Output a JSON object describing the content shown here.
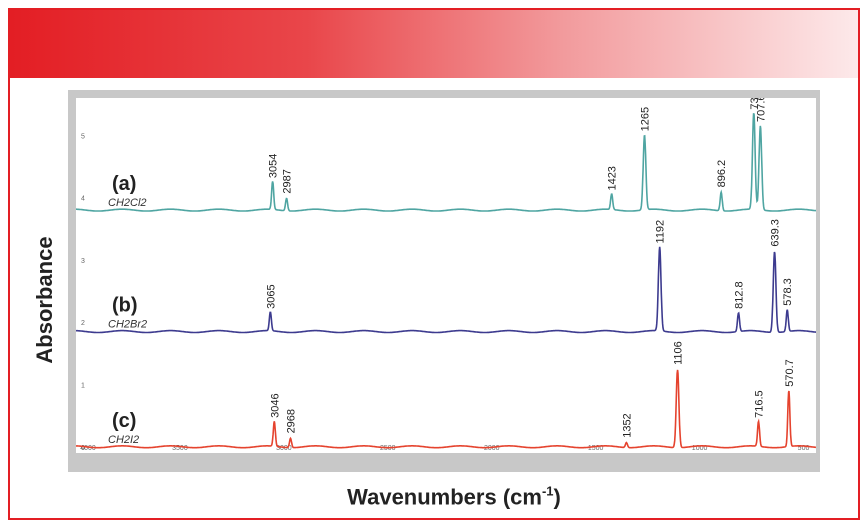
{
  "chart_data": {
    "type": "line",
    "xlabel_text": "Wavenumbers (cm",
    "xlabel_sup": "-1",
    "xlabel_close": ")",
    "ylabel": "Absorbance",
    "xlim": [
      4000,
      440
    ],
    "ylim": [
      -0.1,
      5.6
    ],
    "x_ticks": [
      "4000",
      "3500",
      "3000",
      "2500",
      "2000",
      "1500",
      "1000",
      "500"
    ],
    "y_ticks": [
      "0",
      "1",
      "2",
      "3",
      "4",
      "5"
    ],
    "colors": {
      "a": "#4fa5a2",
      "b": "#3d3b8f",
      "c": "#e5432e"
    },
    "series": [
      {
        "tag": "(a)",
        "formula": "CH2Cl2",
        "baseline": 3.8,
        "peaks": [
          {
            "x": 3054,
            "label": "3054",
            "h": 0.45
          },
          {
            "x": 2987,
            "label": "2987",
            "h": 0.2
          },
          {
            "x": 1423,
            "label": "1423",
            "h": 0.25
          },
          {
            "x": 1265,
            "label": "1265",
            "h": 1.2
          },
          {
            "x": 896.2,
            "label": "896.2",
            "h": 0.3
          },
          {
            "x": 739.3,
            "label": "739.3",
            "h": 1.55
          },
          {
            "x": 707.6,
            "label": "707.6",
            "h": 1.35
          }
        ]
      },
      {
        "tag": "(b)",
        "formula": "CH2Br2",
        "baseline": 1.85,
        "peaks": [
          {
            "x": 3065,
            "label": "3065",
            "h": 0.3
          },
          {
            "x": 1192,
            "label": "1192",
            "h": 1.35
          },
          {
            "x": 812.8,
            "label": "812.8",
            "h": 0.3
          },
          {
            "x": 639.3,
            "label": "639.3",
            "h": 1.3
          },
          {
            "x": 578.3,
            "label": "578.3",
            "h": 0.35
          }
        ]
      },
      {
        "tag": "(c)",
        "formula": "CH2I2",
        "baseline": 0.0,
        "peaks": [
          {
            "x": 3046,
            "label": "3046",
            "h": 0.4
          },
          {
            "x": 2968,
            "label": "2968",
            "h": 0.15
          },
          {
            "x": 1352,
            "label": "1352",
            "h": 0.08
          },
          {
            "x": 1106,
            "label": "1106",
            "h": 1.25
          },
          {
            "x": 716.5,
            "label": "716.5",
            "h": 0.4
          },
          {
            "x": 570.7,
            "label": "570.7",
            "h": 0.9
          }
        ]
      }
    ]
  }
}
